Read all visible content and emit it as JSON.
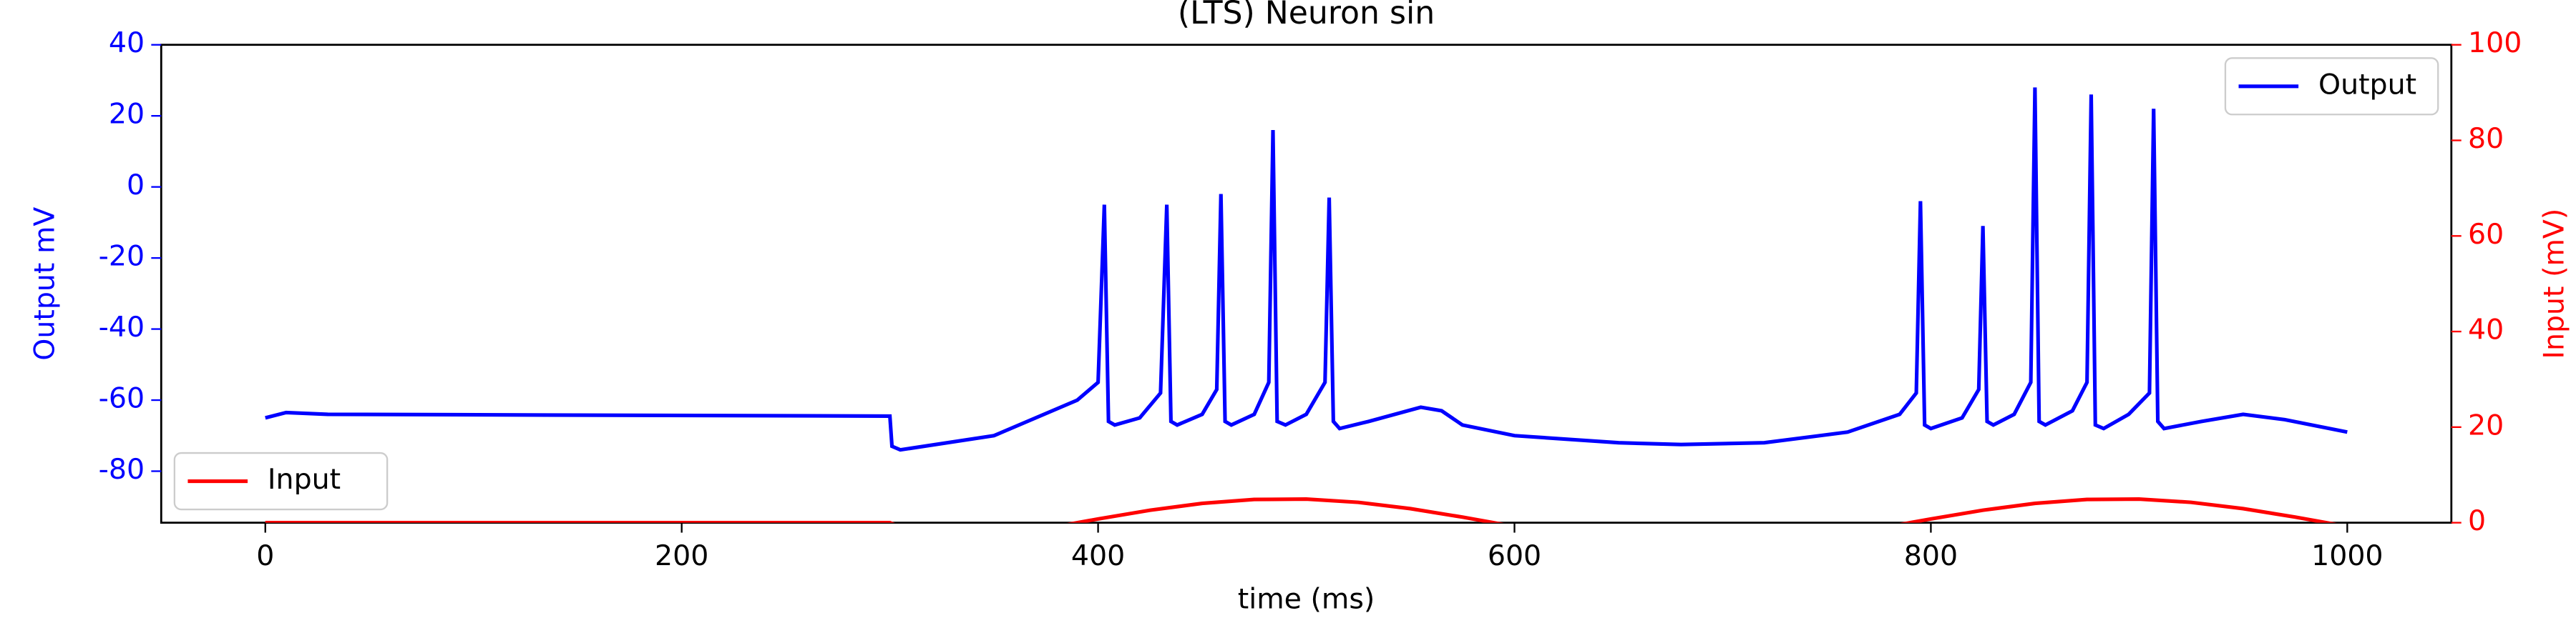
{
  "chart_data": {
    "type": "line",
    "title": "(LTS) Neuron sin",
    "xlabel": "time (ms)",
    "ylabel": "Output mV",
    "y2label": "Input (mV)",
    "xlim": [
      -50,
      1050
    ],
    "xticks": [
      0,
      200,
      400,
      600,
      800,
      1000
    ],
    "ylim": [
      -94.5,
      40
    ],
    "yticks": [
      -80,
      -60,
      -40,
      -20,
      0,
      20,
      40
    ],
    "y2lim": [
      0,
      100
    ],
    "y2ticks": [
      0,
      20,
      40,
      60,
      80,
      100
    ],
    "series": [
      {
        "name": "Output",
        "color": "#0000ff",
        "axis": "y",
        "legend": "upper right",
        "x": [
          0,
          10,
          30,
          300,
          301,
          305,
          350,
          390,
          400,
          403,
          405,
          408,
          420,
          430,
          433,
          435,
          438,
          450,
          457,
          459,
          461,
          464,
          475,
          482,
          484,
          486,
          490,
          500,
          509,
          511,
          513,
          516,
          530,
          555,
          565,
          575,
          600,
          650,
          680,
          720,
          760,
          785,
          793,
          795,
          797,
          800,
          815,
          823,
          825,
          827,
          830,
          840,
          848,
          850,
          852,
          855,
          868,
          875,
          877,
          879,
          883,
          895,
          905,
          907,
          909,
          912,
          930,
          950,
          970,
          1000
        ],
        "values": [
          -65,
          -63.5,
          -64,
          -64.5,
          -73,
          -74,
          -70,
          -60,
          -55,
          -5,
          -66,
          -67,
          -65,
          -58,
          -5,
          -66,
          -67,
          -64,
          -57,
          -2,
          -66,
          -67,
          -64,
          -55,
          16,
          -66,
          -67,
          -64,
          -55,
          -3,
          -66,
          -68,
          -66,
          -62,
          -63,
          -67,
          -70,
          -72,
          -72.5,
          -72,
          -69,
          -64,
          -58,
          -4,
          -67,
          -68,
          -65,
          -57,
          -11,
          -66,
          -67,
          -64,
          -55,
          28,
          -66,
          -67,
          -63,
          -55,
          26,
          -67,
          -68,
          -64,
          -58,
          22,
          -66,
          -68,
          -66,
          -64,
          -65.5,
          -69
        ]
      },
      {
        "name": "Input",
        "color": "#ff0000",
        "axis": "y2",
        "legend": "lower left",
        "x": [
          0,
          300,
          325,
          350,
          375,
          400,
          425,
          450,
          475,
          500,
          525,
          550,
          575,
          600,
          625,
          650,
          675,
          700,
          725,
          750,
          775,
          800,
          825,
          850,
          875,
          900,
          925,
          950,
          975,
          1000
        ],
        "values": [
          0,
          0,
          -4.26,
          -2.94,
          -1.17,
          0.78,
          2.61,
          4.05,
          4.86,
          4.94,
          4.26,
          2.94,
          1.17,
          -0.78,
          -2.61,
          -4.05,
          -4.86,
          -4.94,
          -4.26,
          -2.94,
          -1.17,
          0.78,
          2.61,
          4.05,
          4.86,
          4.94,
          4.26,
          2.94,
          1.17,
          -0.78
        ]
      }
    ]
  }
}
